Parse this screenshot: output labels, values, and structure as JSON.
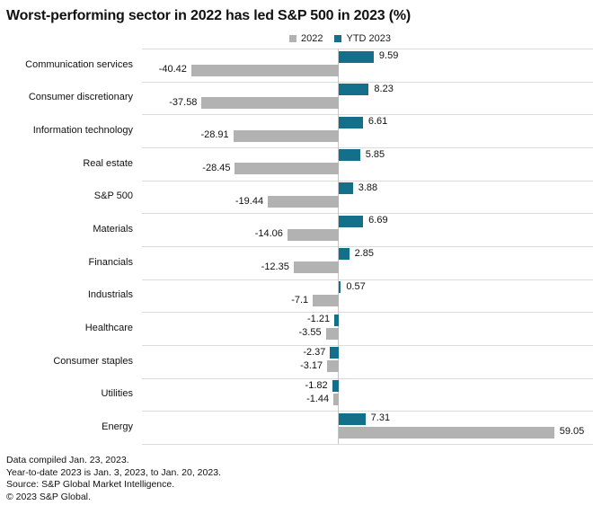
{
  "title": "Worst-performing sector in 2022 has led S&P 500 in 2023 (%)",
  "legend": {
    "items": [
      {
        "label": "2022",
        "color": "#b2b2b2"
      },
      {
        "label": "YTD 2023",
        "color": "#14708a"
      }
    ]
  },
  "chart_data": {
    "type": "bar",
    "orientation": "horizontal",
    "title": "Worst-performing sector in 2022 has led S&P 500 in 2023 (%)",
    "categories": [
      "Communication services",
      "Consumer discretionary",
      "Information technology",
      "Real estate",
      "S&P 500",
      "Materials",
      "Financials",
      "Industrials",
      "Healthcare",
      "Consumer staples",
      "Utilities",
      "Energy"
    ],
    "series": [
      {
        "name": "2022",
        "color": "#b2b2b2",
        "values": [
          -40.42,
          -37.58,
          -28.91,
          -28.45,
          -19.44,
          -14.06,
          -12.35,
          -7.1,
          -3.55,
          -3.17,
          -1.44,
          59.05
        ],
        "labels": [
          "-40.42",
          "-37.58",
          "-28.91",
          "-28.45",
          "-19.44",
          "-14.06",
          "-12.35",
          "-7.1",
          "-3.55",
          "-3.17",
          "-1.44",
          "59.05"
        ]
      },
      {
        "name": "YTD 2023",
        "color": "#14708a",
        "values": [
          9.59,
          8.23,
          6.61,
          5.85,
          3.88,
          6.69,
          2.85,
          0.57,
          -1.21,
          -2.37,
          -1.82,
          7.31
        ],
        "labels": [
          "9.59",
          "8.23",
          "6.61",
          "5.85",
          "3.88",
          "6.69",
          "2.85",
          "0.57",
          "-1.21",
          "-2.37",
          "-1.82",
          "7.31"
        ]
      }
    ],
    "xlim": [
      -45,
      65
    ],
    "grid": "row-dividers",
    "legend_position": "top-center",
    "value_labels": true
  },
  "footer": {
    "lines": [
      "Data compiled Jan. 23, 2023.",
      "Year-to-date 2023 is Jan. 3, 2023, to Jan. 20, 2023.",
      "Source: S&P Global Market Intelligence.",
      "© 2023 S&P Global."
    ]
  }
}
